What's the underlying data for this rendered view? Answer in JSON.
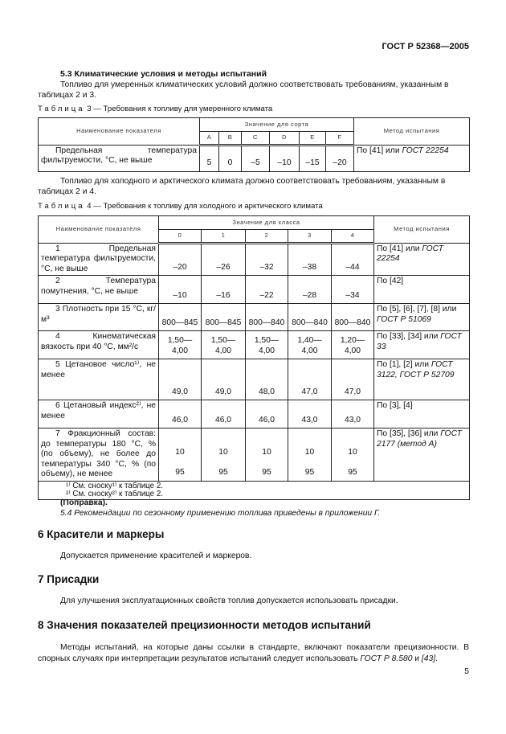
{
  "header": {
    "doc_id": "ГОСТ Р 52368—2005"
  },
  "s53": {
    "title": "5.3 Климатические условия и методы испытаний",
    "p1": "Топливо для умеренных климатических условий должно соответствовать требованиям, указанным в таблицах 2 и 3.",
    "p2": "Топливо для холодного и арктического климата должно соответствовать требованиям, указанным в таблицах 2 и 4."
  },
  "table3": {
    "caption_word": "Таблица",
    "caption": "3 — Требования к топливу для умеренного климата",
    "h_name": "Наименование показателя",
    "h_group": "Значение для сорта",
    "h_method": "Метод испытания",
    "cols": [
      "A",
      "B",
      "C",
      "D",
      "E",
      "F"
    ],
    "rows": [
      {
        "name": "Предельная температура фильтруемости, °С, не выше",
        "values": [
          "5",
          "0",
          "–5",
          "–10",
          "–15",
          "–20"
        ],
        "method": "По [41] или ",
        "method_it": "ГОСТ 22254"
      }
    ]
  },
  "table4": {
    "caption_word": "Таблица",
    "caption": "4 — Требования к топливу для холодного и арктического климата",
    "h_name": "Наименование показателя",
    "h_group": "Значение для класса",
    "h_method": "Метод испытания",
    "cols": [
      "0",
      "1",
      "2",
      "3",
      "4"
    ],
    "rows": [
      {
        "name": "1 Предельная температура фильтруемости, °С, не выше",
        "values": [
          "–20",
          "–26",
          "–32",
          "–38",
          "–44"
        ],
        "method": "По [41] или ",
        "method_it": "ГОСТ 22254"
      },
      {
        "name": "2 Температура помутнения, °С, не выше",
        "values": [
          "–10",
          "–16",
          "–22",
          "–28",
          "–34"
        ],
        "method": "По [42]",
        "method_it": ""
      },
      {
        "name": "3 Плотность при 15 °С, кг/м³",
        "values": [
          "800—845",
          "800—845",
          "800—840",
          "800—840",
          "800—840"
        ],
        "method": "По [5], [6], [7], [8] или ",
        "method_it": "ГОСТ Р 51069"
      },
      {
        "name": "4 Кинематическая вязкость при 40 °С, мм²/с",
        "values": [
          "1,50—4,00",
          "1,50—4,00",
          "1,50—4,00",
          "1,40—4,00",
          "1,20—4,00"
        ],
        "method": "По [33], [34] или ",
        "method_it": "ГОСТ 33"
      },
      {
        "name": "5 Цетановое число¹⁾, не менее",
        "values": [
          "49,0",
          "49,0",
          "48,0",
          "47,0",
          "47,0"
        ],
        "method": "По [1], [2] или ",
        "method_it": "ГОСТ 3122, ГОСТ Р 52709"
      },
      {
        "name": "6 Цетановый индекс²⁾, не менее",
        "values": [
          "46,0",
          "46,0",
          "46,0",
          "43,0",
          "43,0"
        ],
        "method": "По [3], [4]",
        "method_it": ""
      },
      {
        "name": "7 Фракционный состав: до температуры 180 °С, % (по объему), не более до температуры 340 °С, % (по объему), не менее",
        "values": [
          "10\n\n95",
          "10\n\n95",
          "10\n\n95",
          "10\n\n95",
          "10\n\n95"
        ],
        "method": "По [35], [36] или ",
        "method_it": "ГОСТ 2177 (метод А)"
      }
    ],
    "footnotes": [
      "¹⁾ См. сноску¹⁾ к таблице 2.",
      "²⁾ См. сноску²⁾ к таблице 2."
    ]
  },
  "amend": "(Поправка).",
  "s54": "5.4 Рекомендации по сезонному применению топлива приведены в приложении Г.",
  "s6": {
    "title": "6 Красители и маркеры",
    "text": "Допускается применение красителей и маркеров."
  },
  "s7": {
    "title": "7 Присадки",
    "text": "Для улучшения эксплуатационных свойств топлив допускается использовать присадки."
  },
  "s8": {
    "title": "8 Значения показателей прецизионности методов испытаний",
    "text1": "Методы испытаний, на которые даны ссылки в стандарте, включают показатели прецизионности. В спорных случаях при интерпретации результатов испытаний следует использовать ",
    "ref1": "ГОСТ Р 8.580",
    "text2": " и ",
    "ref2": "[43]",
    "text3": "."
  },
  "page_number": "5"
}
